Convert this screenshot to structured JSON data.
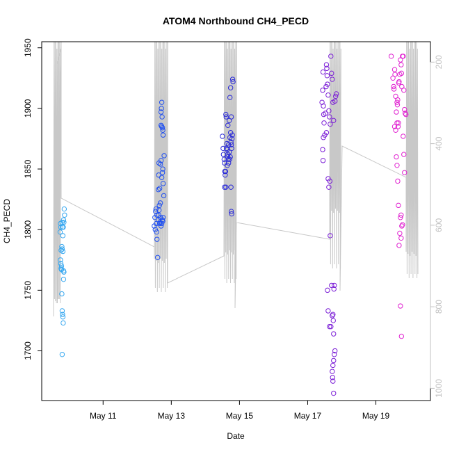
{
  "chart_data": {
    "type": "scatter",
    "title": "ATOM4 Northbound CH4_PECD",
    "xlabel": "Date",
    "ylabel": "CH4_PECD",
    "xlim": [
      9.2,
      20.6
    ],
    "ylim": [
      1659,
      1955
    ],
    "x_ticks": [
      {
        "value": 11,
        "label": "May 11"
      },
      {
        "value": 13,
        "label": "May 13"
      },
      {
        "value": 15,
        "label": "May 15"
      },
      {
        "value": 17,
        "label": "May 17"
      },
      {
        "value": 19,
        "label": "May 19"
      }
    ],
    "y_ticks": [
      1700,
      1750,
      1800,
      1850,
      1900,
      1950
    ],
    "y2_ticks": [
      200,
      400,
      600,
      800,
      1000
    ],
    "y2lim": [
      1030,
      150
    ],
    "grid": false,
    "colors": {
      "flight1": "#33a6f0",
      "flight2": "#1f4ff0",
      "flight3": "#2a2ad8",
      "flight4": "#7a1cd6",
      "flight5": "#e020d0",
      "secondary_line": "#c8c8c8",
      "secondary_axis": "#c0c0c0"
    },
    "series": [
      {
        "color_key": "flight1",
        "points": [
          [
            9.75,
            1805
          ],
          [
            9.76,
            1802
          ],
          [
            9.74,
            1798
          ],
          [
            9.77,
            1783
          ],
          [
            9.75,
            1775
          ],
          [
            9.76,
            1772
          ],
          [
            9.78,
            1770
          ],
          [
            9.77,
            1768
          ],
          [
            9.79,
            1786
          ],
          [
            9.8,
            1784
          ],
          [
            9.81,
            1802
          ],
          [
            9.8,
            1806
          ],
          [
            9.82,
            1795
          ],
          [
            9.83,
            1802
          ],
          [
            9.84,
            1808
          ],
          [
            9.85,
            1806
          ],
          [
            9.86,
            1817
          ],
          [
            9.87,
            1812
          ],
          [
            9.79,
            1747
          ],
          [
            9.8,
            1733
          ],
          [
            9.81,
            1730
          ],
          [
            9.82,
            1728
          ],
          [
            9.83,
            1723
          ],
          [
            9.84,
            1766
          ],
          [
            9.85,
            1765
          ],
          [
            9.84,
            1759
          ],
          [
            9.8,
            1697
          ],
          [
            9.78,
            1767
          ],
          [
            9.82,
            1782
          ]
        ]
      },
      {
        "color_key": "flight2",
        "points": [
          [
            12.5,
            1803
          ],
          [
            12.52,
            1810
          ],
          [
            12.54,
            1815
          ],
          [
            12.55,
            1817
          ],
          [
            12.56,
            1805
          ],
          [
            12.57,
            1798
          ],
          [
            12.58,
            1792
          ],
          [
            12.6,
            1777
          ],
          [
            12.62,
            1808
          ],
          [
            12.63,
            1812
          ],
          [
            12.64,
            1816
          ],
          [
            12.65,
            1820
          ],
          [
            12.66,
            1805
          ],
          [
            12.67,
            1806
          ],
          [
            12.68,
            1810
          ],
          [
            12.7,
            1803
          ],
          [
            12.72,
            1805
          ],
          [
            12.74,
            1808
          ],
          [
            12.75,
            1807
          ],
          [
            12.76,
            1810
          ],
          [
            12.62,
            1833
          ],
          [
            12.63,
            1845
          ],
          [
            12.64,
            1855
          ],
          [
            12.66,
            1834
          ],
          [
            12.68,
            1854
          ],
          [
            12.7,
            1857
          ],
          [
            12.72,
            1843
          ],
          [
            12.74,
            1847
          ],
          [
            12.75,
            1850
          ],
          [
            12.76,
            1838
          ],
          [
            12.78,
            1828
          ],
          [
            12.79,
            1861
          ],
          [
            12.7,
            1886
          ],
          [
            12.72,
            1885
          ],
          [
            12.74,
            1884
          ],
          [
            12.75,
            1882
          ],
          [
            12.76,
            1878
          ],
          [
            12.7,
            1897
          ],
          [
            12.71,
            1900
          ],
          [
            12.72,
            1905
          ],
          [
            12.73,
            1893
          ],
          [
            12.68,
            1822
          ],
          [
            12.58,
            1812
          ],
          [
            12.53,
            1800
          ]
        ]
      },
      {
        "color_key": "flight3",
        "points": [
          [
            14.5,
            1877
          ],
          [
            14.52,
            1867
          ],
          [
            14.53,
            1862
          ],
          [
            14.55,
            1858
          ],
          [
            14.56,
            1855
          ],
          [
            14.57,
            1848
          ],
          [
            14.58,
            1845
          ],
          [
            14.6,
            1835
          ],
          [
            14.62,
            1867
          ],
          [
            14.63,
            1871
          ],
          [
            14.64,
            1866
          ],
          [
            14.65,
            1860
          ],
          [
            14.66,
            1862
          ],
          [
            14.67,
            1858
          ],
          [
            14.68,
            1870
          ],
          [
            14.7,
            1864
          ],
          [
            14.72,
            1876
          ],
          [
            14.74,
            1880
          ],
          [
            14.75,
            1872
          ],
          [
            14.76,
            1870
          ],
          [
            14.77,
            1867
          ],
          [
            14.78,
            1875
          ],
          [
            14.6,
            1895
          ],
          [
            14.61,
            1893
          ],
          [
            14.66,
            1886
          ],
          [
            14.7,
            1890
          ],
          [
            14.72,
            1909
          ],
          [
            14.74,
            1917
          ],
          [
            14.76,
            1893
          ],
          [
            14.8,
            1924
          ],
          [
            14.81,
            1922
          ],
          [
            14.75,
            1835
          ],
          [
            14.76,
            1815
          ],
          [
            14.77,
            1813
          ],
          [
            14.59,
            1848
          ],
          [
            14.64,
            1853
          ],
          [
            14.68,
            1855
          ],
          [
            14.71,
            1858
          ],
          [
            14.73,
            1860
          ],
          [
            14.79,
            1878
          ],
          [
            14.56,
            1835
          ]
        ]
      },
      {
        "color_key": "flight4",
        "points": [
          [
            17.42,
            1905
          ],
          [
            17.44,
            1915
          ],
          [
            17.45,
            1930
          ],
          [
            17.46,
            1902
          ],
          [
            17.47,
            1895
          ],
          [
            17.48,
            1888
          ],
          [
            17.5,
            1878
          ],
          [
            17.52,
            1896
          ],
          [
            17.54,
            1918
          ],
          [
            17.55,
            1936
          ],
          [
            17.56,
            1933
          ],
          [
            17.57,
            1927
          ],
          [
            17.58,
            1920
          ],
          [
            17.6,
            1911
          ],
          [
            17.62,
            1898
          ],
          [
            17.64,
            1893
          ],
          [
            17.66,
            1887
          ],
          [
            17.68,
            1943
          ],
          [
            17.7,
            1929
          ],
          [
            17.72,
            1924
          ],
          [
            17.74,
            1905
          ],
          [
            17.76,
            1890
          ],
          [
            17.8,
            1906
          ],
          [
            17.82,
            1910
          ],
          [
            17.84,
            1912
          ],
          [
            17.44,
            1866
          ],
          [
            17.45,
            1857
          ],
          [
            17.46,
            1876
          ],
          [
            17.55,
            1880
          ],
          [
            17.6,
            1842
          ],
          [
            17.62,
            1835
          ],
          [
            17.65,
            1840
          ],
          [
            17.66,
            1795
          ],
          [
            17.58,
            1750
          ],
          [
            17.6,
            1733
          ],
          [
            17.64,
            1720
          ],
          [
            17.68,
            1720
          ],
          [
            17.7,
            1754
          ],
          [
            17.72,
            1729
          ],
          [
            17.74,
            1730
          ],
          [
            17.75,
            1725
          ],
          [
            17.76,
            1714
          ],
          [
            17.78,
            1754
          ],
          [
            17.8,
            1700
          ],
          [
            17.78,
            1697
          ],
          [
            17.76,
            1692
          ],
          [
            17.74,
            1688
          ],
          [
            17.72,
            1683
          ],
          [
            17.73,
            1678
          ],
          [
            17.74,
            1675
          ],
          [
            17.76,
            1665
          ],
          [
            17.77,
            1751
          ]
        ]
      },
      {
        "color_key": "flight5",
        "points": [
          [
            19.45,
            1943
          ],
          [
            19.5,
            1925
          ],
          [
            19.52,
            1918
          ],
          [
            19.53,
            1916
          ],
          [
            19.55,
            1932
          ],
          [
            19.56,
            1928
          ],
          [
            19.58,
            1910
          ],
          [
            19.6,
            1897
          ],
          [
            19.62,
            1905
          ],
          [
            19.63,
            1903
          ],
          [
            19.64,
            1907
          ],
          [
            19.65,
            1885
          ],
          [
            19.66,
            1888
          ],
          [
            19.67,
            1921
          ],
          [
            19.68,
            1922
          ],
          [
            19.7,
            1928
          ],
          [
            19.72,
            1940
          ],
          [
            19.74,
            1936
          ],
          [
            19.75,
            1929
          ],
          [
            19.76,
            1918
          ],
          [
            19.78,
            1943
          ],
          [
            19.8,
            1943
          ],
          [
            19.82,
            1915
          ],
          [
            19.84,
            1899
          ],
          [
            19.86,
            1896
          ],
          [
            19.88,
            1895
          ],
          [
            19.6,
            1860
          ],
          [
            19.62,
            1853
          ],
          [
            19.64,
            1840
          ],
          [
            19.66,
            1820
          ],
          [
            19.68,
            1787
          ],
          [
            19.7,
            1797
          ],
          [
            19.72,
            1810
          ],
          [
            19.74,
            1812
          ],
          [
            19.76,
            1803
          ],
          [
            19.78,
            1804
          ],
          [
            19.8,
            1877
          ],
          [
            19.82,
            1862
          ],
          [
            19.84,
            1847
          ],
          [
            19.74,
            1793
          ],
          [
            19.72,
            1737
          ],
          [
            19.75,
            1712
          ],
          [
            19.62,
            1888
          ],
          [
            19.58,
            1882
          ],
          [
            19.55,
            1885
          ]
        ]
      }
    ]
  }
}
